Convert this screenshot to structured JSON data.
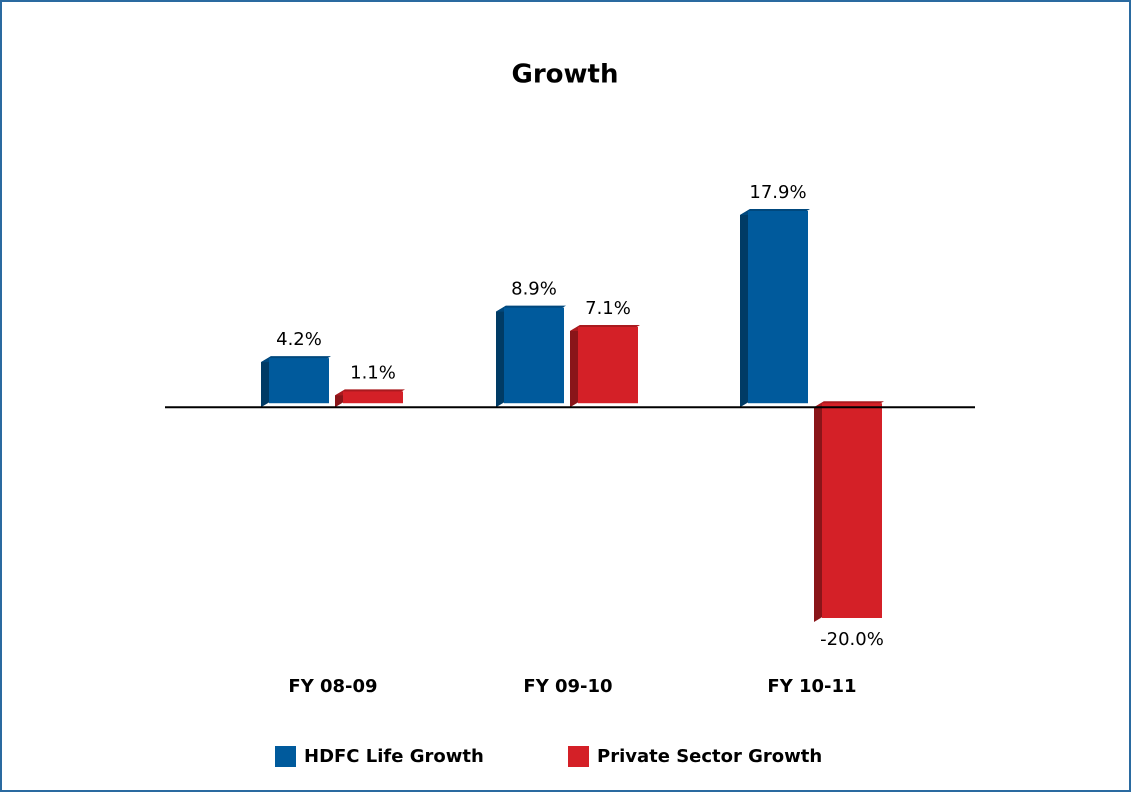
{
  "chart_data": {
    "type": "bar3d",
    "title": "Growth",
    "categories": [
      "FY 08-09",
      "FY 09-10",
      "FY 10-11"
    ],
    "series": [
      {
        "name": "HDFC Life Growth",
        "color": "#005a9c",
        "values": [
          4.2,
          8.9,
          17.9
        ],
        "value_labels": [
          "4.2%",
          "8.9%",
          "17.9%"
        ]
      },
      {
        "name": "Private Sector Growth",
        "color": "#d42027",
        "values": [
          1.1,
          7.1,
          -20.0
        ],
        "value_labels": [
          "1.1%",
          "7.1%",
          "-20.0%"
        ]
      }
    ]
  }
}
